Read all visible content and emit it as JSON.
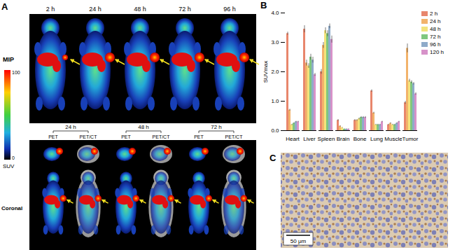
{
  "panel_labels": [
    "A",
    "B",
    "C"
  ],
  "panel_a": {
    "top_times": [
      "2 h",
      "24 h",
      "48 h",
      "72 h",
      "96 h"
    ],
    "mip_label": "MIP",
    "colorbar": {
      "max": 100,
      "min": 0,
      "label": "SUV"
    },
    "bottom_times": [
      "24 h",
      "48 h",
      "72 h"
    ],
    "views": [
      "PET",
      "PET/CT"
    ],
    "coronal_label": "Coronal"
  },
  "panel_c": {
    "scale_bar": "50 μm"
  },
  "chart_data": {
    "type": "bar",
    "y_label": "SUVmax",
    "categories": [
      "Heart",
      "Liver",
      "Spleen",
      "Brain",
      "Bone",
      "Lung",
      "Muscle",
      "Tumor"
    ],
    "series": [
      {
        "name": "2 h",
        "color": "#e8866c",
        "values": [
          3.3,
          3.45,
          2.0,
          0.35,
          0.35,
          1.35,
          0.2,
          0.95
        ],
        "errors": [
          0.05,
          0.12,
          0.08,
          0.03,
          0.03,
          0.04,
          0.02,
          0.05
        ]
      },
      {
        "name": "24 h",
        "color": "#f2b36b",
        "values": [
          0.7,
          2.3,
          2.9,
          0.15,
          0.35,
          0.6,
          0.25,
          2.8
        ],
        "errors": [
          0.03,
          0.1,
          0.1,
          0.02,
          0.03,
          0.03,
          0.02,
          0.15
        ]
      },
      {
        "name": "48 h",
        "color": "#f3e37c",
        "values": [
          0.2,
          2.2,
          3.4,
          0.1,
          0.4,
          0.2,
          0.2,
          1.7
        ],
        "errors": [
          0.02,
          0.08,
          0.1,
          0.01,
          0.03,
          0.02,
          0.02,
          0.05
        ]
      },
      {
        "name": "72 h",
        "color": "#7fc77e",
        "values": [
          0.25,
          2.5,
          3.3,
          0.05,
          0.45,
          0.2,
          0.2,
          1.65
        ],
        "errors": [
          0.02,
          0.1,
          0.1,
          0.01,
          0.03,
          0.02,
          0.02,
          0.05
        ]
      },
      {
        "name": "96 h",
        "color": "#8fabc9",
        "values": [
          0.3,
          2.4,
          3.55,
          0.05,
          0.45,
          0.2,
          0.25,
          1.6
        ],
        "errors": [
          0.02,
          0.1,
          0.08,
          0.01,
          0.03,
          0.02,
          0.02,
          0.04
        ]
      },
      {
        "name": "120 h",
        "color": "#d792c9",
        "values": [
          0.3,
          1.9,
          3.1,
          0.05,
          0.45,
          0.3,
          0.3,
          1.25
        ],
        "errors": [
          0.02,
          0.05,
          0.12,
          0.01,
          0.03,
          0.02,
          0.02,
          0.04
        ]
      }
    ],
    "ylim": [
      0,
      4
    ],
    "yticks": [
      0,
      1,
      2,
      3,
      4
    ],
    "legend": "right"
  }
}
